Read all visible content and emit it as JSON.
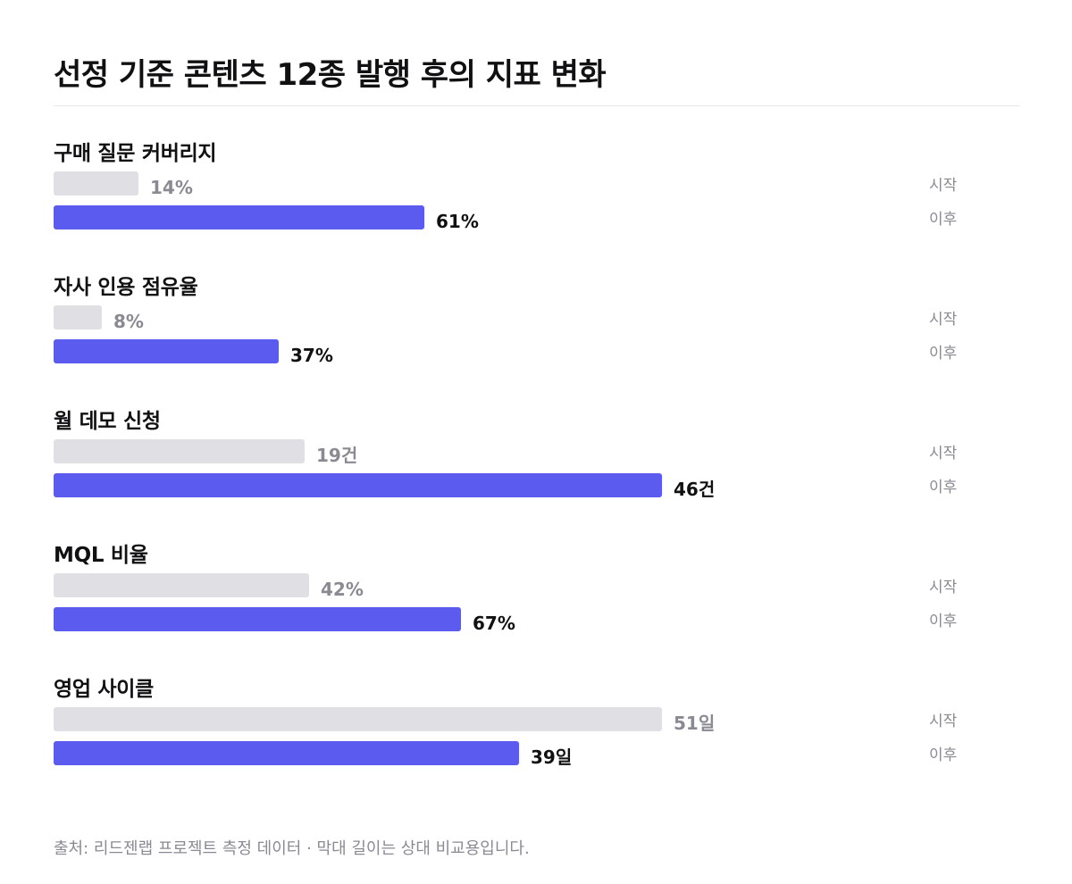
{
  "title": "선정 기준 콘텐츠 12종 발행 후의 지표 변화",
  "source": "출처: 리드젠랩 프로젝트 측정 데이터 · 막대 길이는 상대 비교용입니다.",
  "row_tags": {
    "before": "시작",
    "after": "이후"
  },
  "colors": {
    "before": "#e0e0e4",
    "after": "#5b5bef",
    "before_text": "#8a8a93",
    "after_text": "#111114"
  },
  "chart_data": [
    {
      "type": "bar",
      "orientation": "horizontal",
      "title": "구매 질문 커버리지",
      "categories": [
        "시작",
        "이후"
      ],
      "values": [
        14,
        61
      ],
      "value_labels": [
        "14%",
        "61%"
      ],
      "unit": "%",
      "xlim": [
        0,
        100
      ]
    },
    {
      "type": "bar",
      "orientation": "horizontal",
      "title": "자사 인용 점유율",
      "categories": [
        "시작",
        "이후"
      ],
      "values": [
        8,
        37
      ],
      "value_labels": [
        "8%",
        "37%"
      ],
      "unit": "%",
      "xlim": [
        0,
        100
      ]
    },
    {
      "type": "bar",
      "orientation": "horizontal",
      "title": "월 데모 신청",
      "categories": [
        "시작",
        "이후"
      ],
      "values": [
        19,
        46
      ],
      "value_labels": [
        "19건",
        "46건"
      ],
      "unit": "건",
      "xlim": [
        0,
        46
      ]
    },
    {
      "type": "bar",
      "orientation": "horizontal",
      "title": "MQL 비율",
      "categories": [
        "시작",
        "이후"
      ],
      "values": [
        42,
        67
      ],
      "value_labels": [
        "42%",
        "67%"
      ],
      "unit": "%",
      "xlim": [
        0,
        100
      ]
    },
    {
      "type": "bar",
      "orientation": "horizontal",
      "title": "영업 사이클",
      "categories": [
        "시작",
        "이후"
      ],
      "values": [
        51,
        39
      ],
      "value_labels": [
        "51일",
        "39일"
      ],
      "unit": "일",
      "xlim": [
        0,
        51
      ]
    }
  ]
}
